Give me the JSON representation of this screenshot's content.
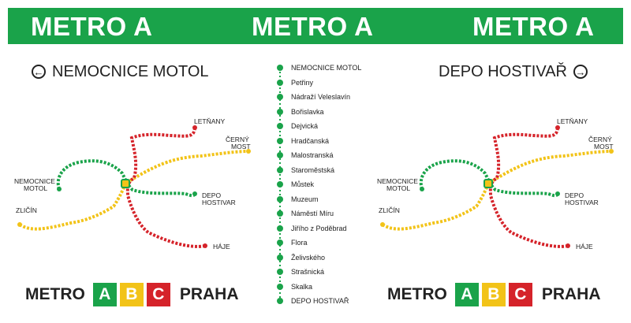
{
  "banner": {
    "titles": [
      "METRO A",
      "METRO A",
      "METRO A"
    ],
    "color": "#1aa34a"
  },
  "direction_left": {
    "label": "NEMOCNICE MOTOL",
    "icon": "arrow-left-circle-icon"
  },
  "direction_right": {
    "label": "DEPO HOSTIVAŘ",
    "icon": "arrow-right-circle-icon"
  },
  "map": {
    "labels": {
      "letnany": "LETŇANY",
      "cerny_most_1": "ČERNÝ",
      "cerny_most_2": "MOST",
      "nemocnice_motol_1": "NEMOCNICE",
      "nemocnice_motol_2": "MOTOL",
      "depo_hostivar_1": "DEPO",
      "depo_hostivar_2": "HOSTIVAR",
      "zlicin": "ZLIČÍN",
      "haje": "HÁJE"
    },
    "line_colors": {
      "A": "#1aa34a",
      "B": "#f2c318",
      "C": "#d5232a"
    }
  },
  "stations": [
    "NEMOCNICE MOTOL",
    "Petřiny",
    "Nádraží Veleslavín",
    "Bořislavka",
    "Dejvická",
    "Hradčanská",
    "Malostranská",
    "Staroměstská",
    "Můstek",
    "Muzeum",
    "Náměstí Míru",
    "Jiřího z Poděbrad",
    "Flora",
    "Želivského",
    "Strašnická",
    "Skalka",
    "DEPO HOSTIVAŘ"
  ],
  "footer": {
    "metro": "METRO",
    "lines": [
      {
        "letter": "A",
        "color": "#1aa34a"
      },
      {
        "letter": "B",
        "color": "#f2c318"
      },
      {
        "letter": "C",
        "color": "#d5232a"
      }
    ],
    "city": "PRAHA"
  }
}
